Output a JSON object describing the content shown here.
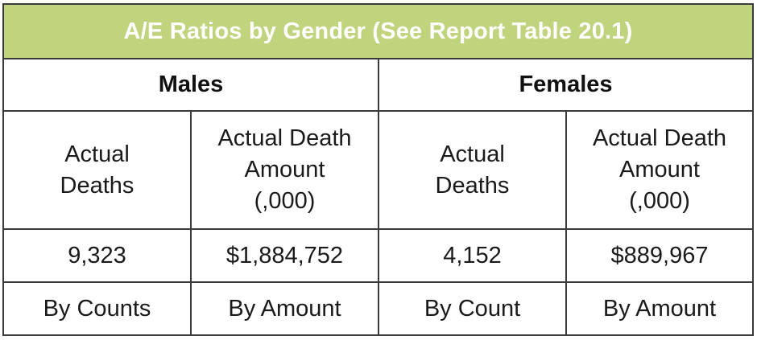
{
  "title": "A/E Ratios by Gender (See Report Table 20.1)",
  "groups": {
    "males": "Males",
    "females": "Females"
  },
  "headers": {
    "males_deaths": [
      "Actual",
      "Deaths"
    ],
    "males_amount": [
      "Actual Death",
      "Amount",
      "(,000)"
    ],
    "females_deaths": [
      "Actual",
      "Deaths"
    ],
    "females_amount": [
      "Actual Death",
      "Amount",
      "(,000)"
    ]
  },
  "values": {
    "males_deaths": "9,323",
    "males_amount": "$1,884,752",
    "females_deaths": "4,152",
    "females_amount": "$889,967"
  },
  "notes": {
    "males_deaths": "By Counts",
    "males_amount": "By Amount",
    "females_deaths": "By Count",
    "females_amount": "By Amount"
  },
  "colors": {
    "title_background": "#bfd47d",
    "title_text": "#ffffff",
    "border": "#3a3a3a"
  }
}
